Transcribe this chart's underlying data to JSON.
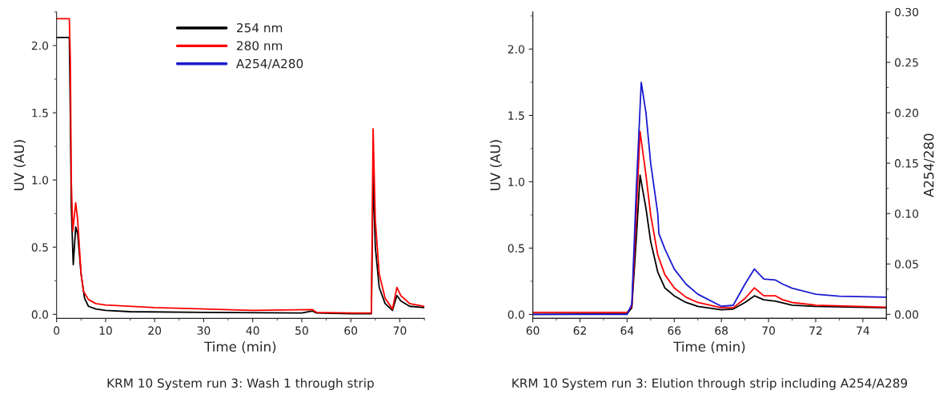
{
  "chart_data": [
    {
      "type": "line",
      "xlabel": "Time (min)",
      "ylabel": "UV (AU)",
      "xlim": [
        0,
        75
      ],
      "ylim": [
        -0.03,
        2.25
      ],
      "xticks": [
        0,
        10,
        20,
        30,
        40,
        50,
        60,
        70
      ],
      "yticks": [
        {
          "value": 0,
          "label": "0.0"
        },
        {
          "value": 0.5,
          "label": "0.5"
        },
        {
          "value": 1,
          "label": "1.0"
        },
        {
          "value": 1.5,
          "label": "1.5"
        },
        {
          "value": 2,
          "label": "2.0"
        }
      ],
      "legend": "top",
      "grid": false,
      "line_style": "solid",
      "marker": "none",
      "annotations": [
        "KRM 10 System run 3: Wash 1 through strip"
      ],
      "series": [
        {
          "name": "254 nm",
          "color": "#000000",
          "x": [
            0,
            2.6,
            2.8,
            3.0,
            3.4,
            3.9,
            4.3,
            5,
            5.7,
            6.5,
            8,
            10,
            15,
            30,
            50,
            52.2,
            53,
            60,
            64.2,
            64.55,
            65.0,
            65.8,
            67,
            68.5,
            69.4,
            70.2,
            72,
            75
          ],
          "values": [
            2.06,
            2.06,
            1.5,
            0.8,
            0.37,
            0.65,
            0.6,
            0.3,
            0.12,
            0.06,
            0.04,
            0.03,
            0.02,
            0.015,
            0.01,
            0.025,
            0.01,
            0.005,
            0.005,
            1.05,
            0.5,
            0.2,
            0.08,
            0.03,
            0.14,
            0.1,
            0.06,
            0.05
          ]
        },
        {
          "name": "280 nm",
          "color": "#ff0000",
          "x": [
            0,
            2.6,
            2.8,
            3.0,
            3.3,
            3.9,
            4.3,
            5,
            5.5,
            6.5,
            8,
            10,
            20,
            40,
            52.2,
            53,
            60,
            64.2,
            64.55,
            65.0,
            65.8,
            67,
            68.5,
            69.4,
            70.2,
            72,
            75
          ],
          "values": [
            2.2,
            2.2,
            1.9,
            1.0,
            0.62,
            0.83,
            0.7,
            0.3,
            0.17,
            0.11,
            0.08,
            0.07,
            0.05,
            0.03,
            0.035,
            0.015,
            0.01,
            0.01,
            1.38,
            0.7,
            0.3,
            0.12,
            0.04,
            0.2,
            0.14,
            0.08,
            0.06
          ]
        },
        {
          "name": "A254/A280",
          "color": "#1a1ad0"
        }
      ]
    },
    {
      "type": "line",
      "xlabel": "Time (min)",
      "ylabel": "UV (AU)",
      "y2label": "A254/280",
      "xlim": [
        60,
        75
      ],
      "ylim": [
        -0.03,
        2.28
      ],
      "y2lim": [
        -0.004,
        0.3
      ],
      "xticks": [
        60,
        62,
        64,
        66,
        68,
        70,
        72,
        74
      ],
      "yticks": [
        {
          "value": 0,
          "label": "0.0"
        },
        {
          "value": 0.5,
          "label": "0.5"
        },
        {
          "value": 1,
          "label": "1.0"
        },
        {
          "value": 1.5,
          "label": "1.5"
        },
        {
          "value": 2,
          "label": "2.0"
        }
      ],
      "y2ticks": [
        {
          "value": 0,
          "label": "0.00"
        },
        {
          "value": 0.05,
          "label": "0.05"
        },
        {
          "value": 0.1,
          "label": "0.10"
        },
        {
          "value": 0.15,
          "label": "0.15"
        },
        {
          "value": 0.2,
          "label": "0.20"
        },
        {
          "value": 0.25,
          "label": "0.25"
        },
        {
          "value": 0.3,
          "label": "0.30"
        }
      ],
      "legend": false,
      "grid": false,
      "line_style": "solid",
      "marker": "none",
      "annotations": [
        "KRM 10 System run 3: Elution through strip including A254/A289"
      ],
      "series": [
        {
          "color": "#000000",
          "x": [
            60,
            64,
            64.2,
            64.4,
            64.55,
            64.8,
            65.0,
            65.3,
            65.6,
            66,
            66.5,
            67,
            68,
            68.5,
            69,
            69.4,
            69.8,
            70.3,
            71,
            72,
            75
          ],
          "values": [
            0.0,
            0.005,
            0.05,
            0.6,
            1.05,
            0.8,
            0.55,
            0.32,
            0.2,
            0.14,
            0.09,
            0.06,
            0.035,
            0.04,
            0.09,
            0.14,
            0.11,
            0.1,
            0.07,
            0.06,
            0.05
          ]
        },
        {
          "color": "#ff0000",
          "x": [
            60,
            64,
            64.2,
            64.4,
            64.55,
            64.8,
            65.0,
            65.3,
            65.6,
            66,
            66.5,
            67,
            68,
            68.5,
            69,
            69.4,
            69.8,
            70.3,
            70.6,
            71,
            72,
            75
          ],
          "values": [
            0.015,
            0.015,
            0.06,
            0.8,
            1.38,
            1.05,
            0.75,
            0.45,
            0.3,
            0.2,
            0.13,
            0.09,
            0.05,
            0.05,
            0.12,
            0.2,
            0.14,
            0.14,
            0.11,
            0.09,
            0.07,
            0.055
          ]
        },
        {
          "color": "#1a1ad0",
          "axis": "y2",
          "x": [
            60,
            64,
            64.2,
            64.4,
            64.6,
            64.8,
            65.0,
            65.3,
            65.35,
            65.6,
            66,
            66.5,
            67,
            68,
            68.5,
            69,
            69.4,
            69.8,
            70.3,
            70.6,
            71,
            72,
            73,
            75
          ],
          "values": [
            0.0,
            0.0,
            0.01,
            0.13,
            0.23,
            0.2,
            0.15,
            0.1,
            0.08,
            0.065,
            0.045,
            0.03,
            0.02,
            0.008,
            0.009,
            0.03,
            0.045,
            0.035,
            0.034,
            0.03,
            0.026,
            0.02,
            0.018,
            0.017
          ]
        }
      ]
    }
  ]
}
